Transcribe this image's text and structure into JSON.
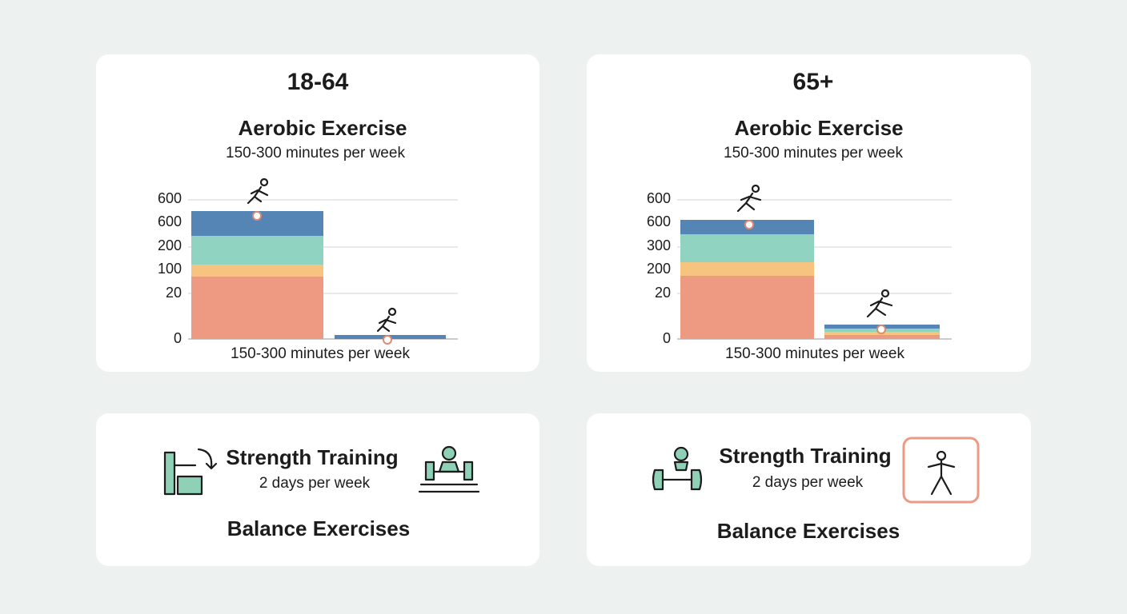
{
  "panels": [
    {
      "age": "18-64",
      "heading": "Aerobic Exercise",
      "subheading": "150-300 minutes per week",
      "axis_labels": [
        "600",
        "600",
        "200",
        "100",
        "20",
        "0"
      ],
      "x_label": "150-300 minutes per week"
    },
    {
      "age": "65+",
      "heading": "Aerobic Exercise",
      "subheading": "150-300 minutes per week",
      "axis_labels": [
        "600",
        "600",
        "300",
        "200",
        "20",
        "0"
      ],
      "x_label": "150-300 minutes per week"
    }
  ],
  "strength": [
    {
      "title": "Strength Training",
      "detail": "2 days per week",
      "footer": "Balance Exercises"
    },
    {
      "title": "Strength Training",
      "detail": "2 days per week",
      "footer": "Balance Exercises"
    }
  ]
}
